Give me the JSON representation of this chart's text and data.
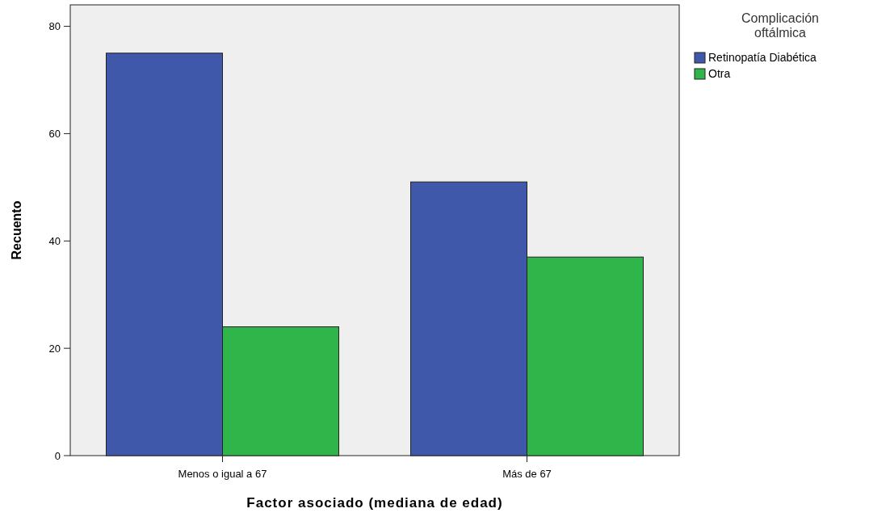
{
  "chart_data": {
    "type": "bar",
    "xlabel": "Factor asociado (mediana de edad)",
    "ylabel": "Recuento",
    "legend_title": "Complicación oftálmica",
    "categories": [
      "Menos o igual a 67",
      "Más de 67"
    ],
    "series": [
      {
        "name": "Retinopatía Diabética",
        "color": "#3f58aa",
        "values": [
          75,
          51
        ]
      },
      {
        "name": "Otra",
        "color": "#2fb54a",
        "values": [
          24,
          37
        ]
      }
    ],
    "ylim": [
      0,
      84
    ],
    "yticks": [
      0,
      20,
      40,
      60,
      80
    ],
    "grid": false,
    "legend": "top right"
  }
}
